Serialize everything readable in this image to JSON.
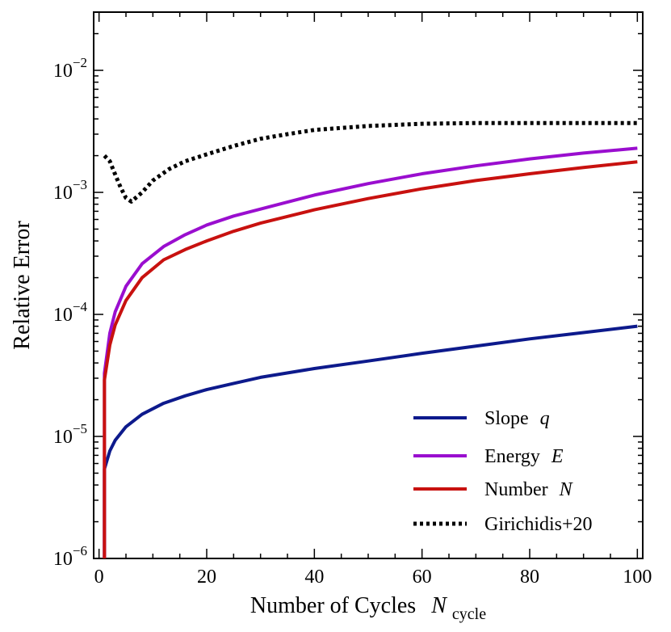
{
  "chart_data": {
    "type": "line",
    "xlabel": "Number of Cycles",
    "xlabel_symbol": "N",
    "xlabel_subscript": "cycle",
    "ylabel": "Relative Error",
    "yscale": "log",
    "xlim": [
      -1,
      101
    ],
    "ylim": [
      1e-06,
      0.03
    ],
    "x_ticks": [
      0,
      20,
      40,
      60,
      80,
      100
    ],
    "y_ticks": [
      {
        "value": 1e-06,
        "base": "10",
        "exp": "−6"
      },
      {
        "value": 1e-05,
        "base": "10",
        "exp": "−5"
      },
      {
        "value": 0.0001,
        "base": "10",
        "exp": "−4"
      },
      {
        "value": 0.001,
        "base": "10",
        "exp": "−3"
      },
      {
        "value": 0.01,
        "base": "10",
        "exp": "−2"
      }
    ],
    "legend_position": "lower-right",
    "series": [
      {
        "name": "Slope",
        "symbol": "q",
        "color": "#0d1a8c",
        "style": "solid",
        "x": [
          1,
          1,
          2,
          3,
          5,
          8,
          12,
          16,
          20,
          25,
          30,
          40,
          50,
          60,
          70,
          80,
          90,
          100
        ],
        "y": [
          1e-06,
          5.4e-06,
          7.6e-06,
          9.3e-06,
          1.2e-05,
          1.52e-05,
          1.87e-05,
          2.15e-05,
          2.42e-05,
          2.72e-05,
          3.05e-05,
          3.6e-05,
          4.15e-05,
          4.8e-05,
          5.5e-05,
          6.3e-05,
          7.1e-05,
          8e-05
        ]
      },
      {
        "name": "Energy",
        "symbol": "E",
        "color": "#9a0ecf",
        "style": "solid",
        "x": [
          1,
          1,
          2,
          3,
          5,
          8,
          12,
          16,
          20,
          25,
          30,
          40,
          50,
          60,
          70,
          80,
          90,
          100
        ],
        "y": [
          1e-06,
          3.3e-05,
          7e-05,
          0.000105,
          0.00017,
          0.00026,
          0.00036,
          0.00045,
          0.00054,
          0.00064,
          0.00073,
          0.00095,
          0.00118,
          0.00142,
          0.00165,
          0.00188,
          0.0021,
          0.0023
        ]
      },
      {
        "name": "Number",
        "symbol": "N",
        "color": "#c8110f",
        "style": "solid",
        "x": [
          1,
          1,
          2,
          3,
          5,
          8,
          12,
          16,
          20,
          25,
          30,
          40,
          50,
          60,
          70,
          80,
          90,
          100
        ],
        "y": [
          1e-06,
          2.9e-05,
          5.6e-05,
          8.2e-05,
          0.00013,
          0.0002,
          0.00028,
          0.00034,
          0.0004,
          0.00048,
          0.00056,
          0.00072,
          0.00089,
          0.00107,
          0.00125,
          0.00142,
          0.0016,
          0.00178
        ]
      },
      {
        "name": "Girichidis+20",
        "symbol": "",
        "color": "#000000",
        "style": "dotted",
        "x": [
          1,
          2,
          3,
          4,
          5,
          6,
          8,
          10,
          13,
          16,
          20,
          25,
          30,
          35,
          40,
          50,
          60,
          70,
          80,
          90,
          100
        ],
        "y": [
          0.002,
          0.0018,
          0.0014,
          0.0011,
          0.0009,
          0.00084,
          0.001,
          0.00125,
          0.00155,
          0.0018,
          0.00205,
          0.0024,
          0.00275,
          0.003,
          0.00325,
          0.0035,
          0.00365,
          0.0037,
          0.0037,
          0.0037,
          0.0037
        ]
      }
    ]
  }
}
